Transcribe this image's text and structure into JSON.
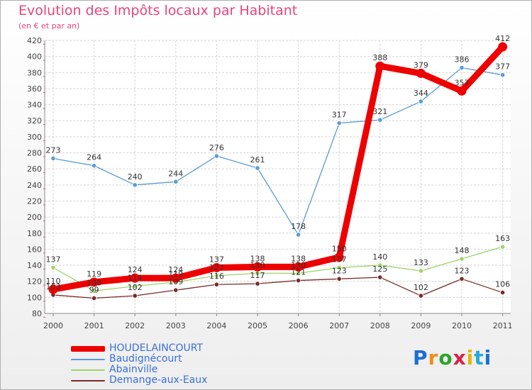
{
  "title": "Evolution des Impôts locaux par Habitant",
  "subtitle": "(en € et par an)",
  "logo": {
    "text": "Proxiti",
    "letter_colors": [
      "#1d6fd1",
      "#f28c1a",
      "#2aa52a",
      "#d6234a",
      "#e8b400",
      "#27a8d8",
      "#1d6fd1"
    ]
  },
  "chart_data": {
    "type": "line",
    "title": "Evolution des Impôts locaux par Habitant",
    "ylabel": "(en € et par an)",
    "xlabel": "",
    "categories": [
      "2000",
      "2001",
      "2002",
      "2003",
      "2004",
      "2005",
      "2006",
      "2007",
      "2008",
      "2009",
      "2010",
      "2011"
    ],
    "ylim": [
      80,
      420
    ],
    "yticks": [
      "80",
      "100",
      "120",
      "140",
      "160",
      "180",
      "200",
      "220",
      "240",
      "260",
      "280",
      "300",
      "320",
      "340",
      "360",
      "380",
      "400",
      "420"
    ],
    "grid": true,
    "legend_position": "bottom-left",
    "series": [
      {
        "name": "HOUDELAINCOURT",
        "color": "#ee0000",
        "values": [
          110,
          119,
          124,
          124,
          137,
          138,
          138,
          150,
          388,
          379,
          357,
          412
        ],
        "labels": [
          "110",
          "119",
          "124",
          "124",
          "137",
          "138",
          "138",
          "150",
          "388",
          "379",
          "357",
          "412"
        ],
        "emphasis": true
      },
      {
        "name": "Baudignécourt",
        "color": "#5b9bd5",
        "values": [
          273,
          264,
          240,
          244,
          276,
          261,
          178,
          317,
          321,
          344,
          386,
          377
        ],
        "labels": [
          "273",
          "264",
          "240",
          "244",
          "276",
          "261",
          "178",
          "317",
          "321",
          "344",
          "386",
          "377"
        ],
        "emphasis": false
      },
      {
        "name": "Abainville",
        "color": "#9ed46a",
        "values": [
          137,
          108,
          114,
          119,
          127,
          130,
          130,
          137,
          140,
          133,
          148,
          163
        ],
        "labels": [
          "137",
          "108",
          "114",
          "119",
          "127",
          "130",
          "130",
          "137",
          "140",
          "133",
          "148",
          "163"
        ],
        "emphasis": false
      },
      {
        "name": "Demange-aux-Eaux",
        "color": "#7a2a2a",
        "values": [
          103,
          99,
          102,
          109,
          116,
          117,
          121,
          123,
          125,
          102,
          123,
          106
        ],
        "labels": [
          "103",
          "99",
          "102",
          "109",
          "116",
          "117",
          "121",
          "123",
          "125",
          "102",
          "123",
          "106"
        ],
        "emphasis": false
      }
    ]
  }
}
